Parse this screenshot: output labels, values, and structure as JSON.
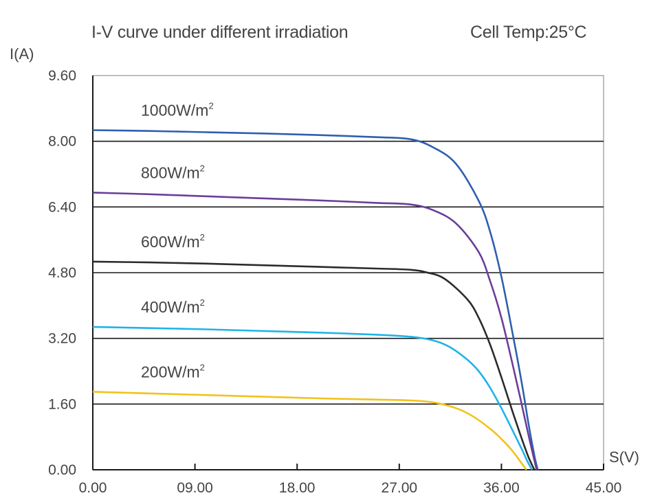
{
  "chart_data": {
    "type": "line",
    "title": "I-V curve under different irradiation",
    "annotation": "Cell Temp:25°C",
    "ylabel": "I(A)",
    "xlabel": "S(V)",
    "xlim": [
      0,
      45
    ],
    "ylim": [
      0,
      9.6
    ],
    "x_ticks": [
      "0.00",
      "09.00",
      "18.00",
      "27.00",
      "36.00",
      "45.00"
    ],
    "y_ticks": [
      "0.00",
      "1.60",
      "3.20",
      "4.80",
      "6.40",
      "8.00",
      "9.60"
    ],
    "grid": "horizontal lines at 1.60, 3.20, 4.80, 6.40, 8.00",
    "series": [
      {
        "name": "1000W/m2",
        "label_main": "1000W/m",
        "label_sup": "2",
        "color": "#2e5fae",
        "x": [
          0,
          5,
          10,
          15,
          20,
          25,
          28,
          30,
          32,
          34,
          35,
          36,
          37,
          37.8,
          38.4,
          38.9,
          39.2
        ],
        "y": [
          8.27,
          8.25,
          8.22,
          8.19,
          8.15,
          8.1,
          8.05,
          7.85,
          7.45,
          6.55,
          5.8,
          4.7,
          3.3,
          2.1,
          1.1,
          0.35,
          0
        ]
      },
      {
        "name": "800W/m2",
        "label_main": "800W/m",
        "label_sup": "2",
        "color": "#6a3d9a",
        "x": [
          0,
          5,
          10,
          15,
          20,
          25,
          28,
          30,
          32,
          34,
          35,
          36,
          37,
          37.7,
          38.3,
          38.8,
          39.1
        ],
        "y": [
          6.75,
          6.71,
          6.66,
          6.61,
          6.56,
          6.5,
          6.46,
          6.32,
          6.0,
          5.3,
          4.6,
          3.7,
          2.55,
          1.7,
          0.95,
          0.35,
          0
        ]
      },
      {
        "name": "600W/m2",
        "label_main": "600W/m",
        "label_sup": "2",
        "color": "#2b2b2b",
        "x": [
          0,
          5,
          10,
          15,
          20,
          25,
          28,
          29.5,
          31,
          33,
          34,
          35,
          36,
          37,
          37.8,
          38.4,
          38.9
        ],
        "y": [
          5.07,
          5.05,
          5.02,
          4.98,
          4.94,
          4.9,
          4.87,
          4.8,
          4.65,
          4.15,
          3.7,
          3.05,
          2.25,
          1.4,
          0.75,
          0.3,
          0
        ]
      },
      {
        "name": "400W/m2",
        "label_main": "400W/m",
        "label_sup": "2",
        "color": "#1fb3e8",
        "x": [
          0,
          5,
          10,
          15,
          20,
          25,
          28,
          30,
          31.5,
          33,
          34,
          35,
          36,
          37,
          37.8,
          38.3,
          38.7
        ],
        "y": [
          3.48,
          3.45,
          3.42,
          3.38,
          3.34,
          3.29,
          3.24,
          3.15,
          2.98,
          2.68,
          2.4,
          2.0,
          1.5,
          0.95,
          0.5,
          0.2,
          0
        ]
      },
      {
        "name": "200W/m2",
        "label_main": "200W/m",
        "label_sup": "2",
        "color": "#f2c21b",
        "x": [
          0,
          5,
          10,
          15,
          20,
          25,
          28,
          30,
          32,
          33.5,
          35,
          36,
          37,
          37.8,
          38.2
        ],
        "y": [
          1.9,
          1.86,
          1.82,
          1.78,
          1.74,
          1.71,
          1.69,
          1.64,
          1.5,
          1.3,
          1.0,
          0.75,
          0.45,
          0.15,
          0
        ]
      }
    ]
  }
}
